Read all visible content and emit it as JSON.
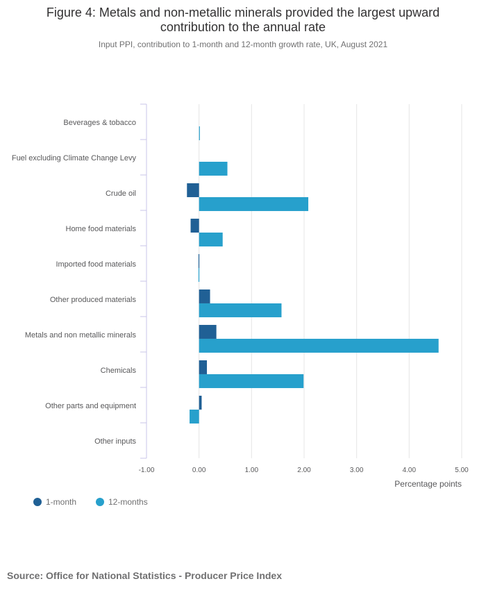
{
  "chart_data": {
    "type": "bar",
    "orientation": "horizontal",
    "title": "Figure 4: Metals and non-metallic minerals provided the largest upward contribution to the annual rate",
    "subtitle": "Input PPI, contribution to 1-month and 12-month growth rate, UK, August 2021",
    "categories": [
      "Beverages & tobacco",
      "Fuel excluding Climate Change Levy",
      "Crude oil",
      "Home food materials",
      "Imported food materials",
      "Other produced materials",
      "Metals and non metallic minerals",
      "Chemicals",
      "Other parts and equipment",
      "Other inputs"
    ],
    "series": [
      {
        "name": "1-month",
        "color": "#206095",
        "values": [
          0.0,
          0.0,
          -0.23,
          -0.16,
          -0.01,
          0.21,
          0.33,
          0.15,
          0.05,
          0.0
        ]
      },
      {
        "name": "12-months",
        "color": "#27a0cc",
        "values": [
          0.01,
          0.54,
          2.08,
          0.45,
          -0.01,
          1.57,
          4.56,
          1.99,
          -0.18,
          0.0
        ]
      }
    ],
    "xlim": [
      -1,
      5
    ],
    "xticks": [
      "-1.00",
      "0.00",
      "1.00",
      "2.00",
      "3.00",
      "4.00",
      "5.00"
    ],
    "xtick_values": [
      -1,
      0,
      1,
      2,
      3,
      4,
      5
    ],
    "xlabel": "Percentage points",
    "legend_position": "bottom-left"
  },
  "source": "Source: Office for National Statistics - Producer Price Index"
}
